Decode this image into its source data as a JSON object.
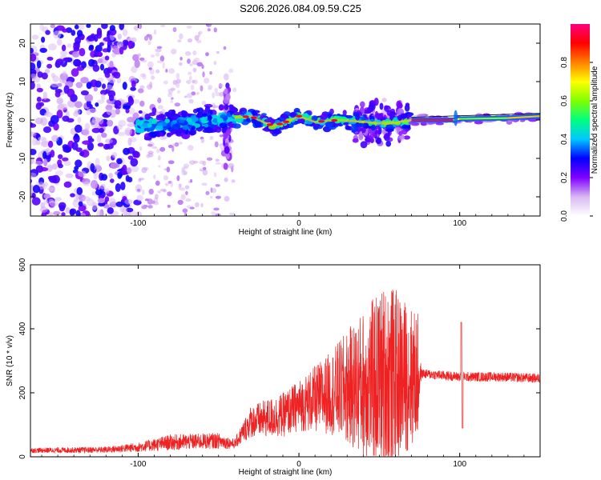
{
  "title": "S206.2026.084.09.59.C25",
  "chart_data": [
    {
      "id": "spectrogram",
      "type": "heatmap",
      "xlabel": "Height of straight line (km)",
      "ylabel": "Frequency (Hz)",
      "xlim": [
        -167,
        150
      ],
      "ylim": [
        -25,
        25
      ],
      "xticks": [
        -100,
        0,
        100
      ],
      "yticks": [
        -20,
        -10,
        0,
        10,
        20
      ],
      "colorbar": {
        "label": "Normalized spectral amplitude",
        "range": [
          0,
          1
        ],
        "ticks": [
          0.0,
          0.2,
          0.4,
          0.6,
          0.8
        ],
        "colors": [
          "#ffffff",
          "#d9b8f2",
          "#7f00ff",
          "#0000ff",
          "#00c8ff",
          "#00ff80",
          "#80ff00",
          "#ffff00",
          "#ff8000",
          "#ff0000",
          "#ff0080"
        ]
      },
      "regions": [
        {
          "x0": -167,
          "x1": -100,
          "fmin": -25,
          "fmax": 25,
          "amp": 0.1,
          "note": "broadband noise"
        },
        {
          "x0": -100,
          "x1": -40,
          "fmin": -8,
          "fmax": 8,
          "amp": 0.25,
          "note": "scattered band"
        },
        {
          "x0": -40,
          "x1": 70,
          "fmin": -4,
          "fmax": 4,
          "amp": 0.55,
          "note": "wandering tone"
        },
        {
          "x0": 70,
          "x1": 150,
          "fmin": 0,
          "fmax": 1,
          "amp": 0.95,
          "note": "steady tone"
        }
      ],
      "ridge": [
        {
          "x": -100,
          "f": -1.5
        },
        {
          "x": -80,
          "f": -1
        },
        {
          "x": -60,
          "f": -0.5
        },
        {
          "x": -40,
          "f": 0.5
        },
        {
          "x": -30,
          "f": 1
        },
        {
          "x": -20,
          "f": -1
        },
        {
          "x": -15,
          "f": -1.5
        },
        {
          "x": -5,
          "f": 0
        },
        {
          "x": 0,
          "f": 1
        },
        {
          "x": 10,
          "f": -0.5
        },
        {
          "x": 25,
          "f": 0
        },
        {
          "x": 40,
          "f": -0.5
        },
        {
          "x": 55,
          "f": -1
        },
        {
          "x": 70,
          "f": 0
        },
        {
          "x": 96,
          "f": 0
        },
        {
          "x": 100,
          "f": 0.3
        },
        {
          "x": 130,
          "f": 0.5
        },
        {
          "x": 150,
          "f": 1
        }
      ]
    },
    {
      "id": "snr",
      "type": "line",
      "xlabel": "Height of straight line (km)",
      "ylabel": "SNR (10 * v/v)",
      "xlim": [
        -167,
        150
      ],
      "ylim": [
        0,
        600
      ],
      "xticks": [
        -100,
        0,
        100
      ],
      "yticks": [
        0,
        200,
        400,
        600
      ],
      "color": "#ee2222",
      "envelope": [
        {
          "x": -167,
          "mean": 20,
          "amp": 8
        },
        {
          "x": -120,
          "mean": 22,
          "amp": 10
        },
        {
          "x": -100,
          "mean": 30,
          "amp": 15
        },
        {
          "x": -80,
          "mean": 45,
          "amp": 25
        },
        {
          "x": -50,
          "mean": 50,
          "amp": 25
        },
        {
          "x": -40,
          "mean": 40,
          "amp": 15
        },
        {
          "x": -30,
          "mean": 110,
          "amp": 50
        },
        {
          "x": -10,
          "mean": 130,
          "amp": 70
        },
        {
          "x": 0,
          "mean": 160,
          "amp": 80
        },
        {
          "x": 20,
          "mean": 200,
          "amp": 130
        },
        {
          "x": 40,
          "mean": 230,
          "amp": 230
        },
        {
          "x": 55,
          "mean": 250,
          "amp": 300
        },
        {
          "x": 74,
          "mean": 250,
          "amp": 200
        },
        {
          "x": 76,
          "mean": 260,
          "amp": 15
        },
        {
          "x": 100,
          "mean": 250,
          "amp": 15
        },
        {
          "x": 125,
          "mean": 250,
          "amp": 15
        },
        {
          "x": 150,
          "mean": 245,
          "amp": 15
        }
      ],
      "features": [
        {
          "x": 101,
          "value": 420,
          "note": "spike"
        },
        {
          "x": 101.8,
          "value": 90,
          "note": "dip"
        }
      ]
    }
  ]
}
